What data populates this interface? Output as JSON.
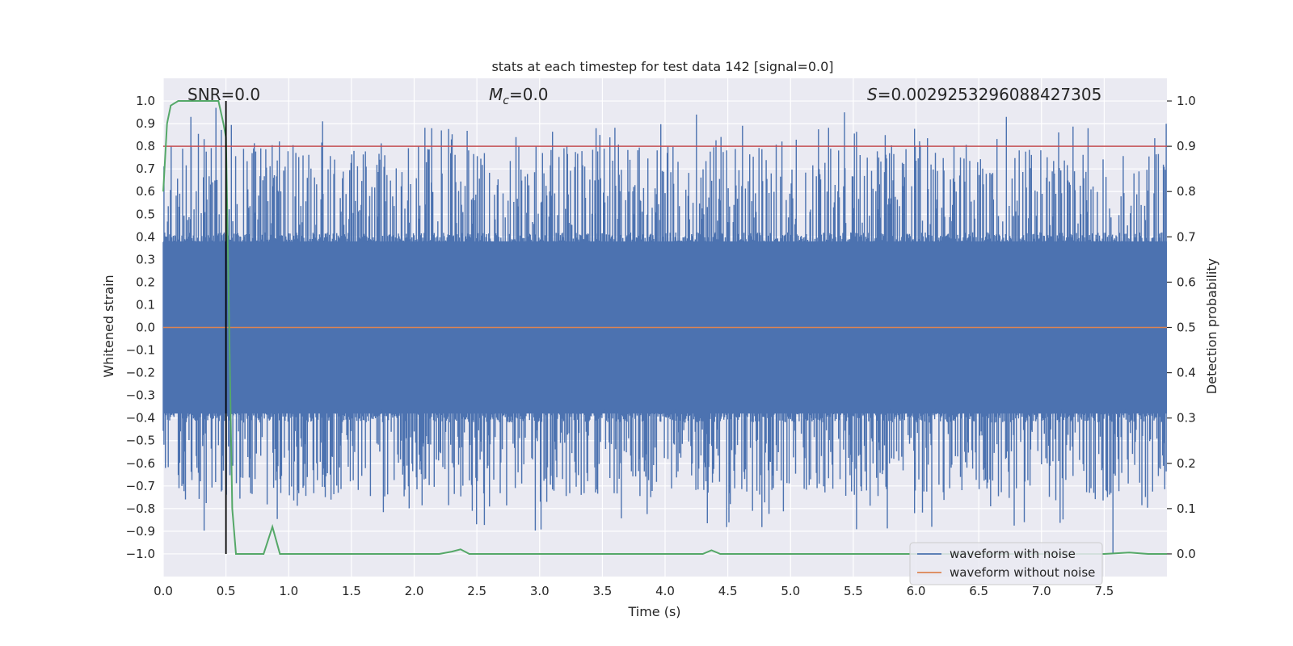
{
  "chart_data": {
    "type": "line",
    "title": "stats at each timestep for test data 142 [signal=0.0]",
    "xlabel": "Time (s)",
    "ylabel": "Whitened strain",
    "ylabel_right": "Detection probability",
    "xlim": [
      0.0,
      8.0
    ],
    "ylim": [
      -1.1,
      1.1
    ],
    "ylim_right": [
      -0.05,
      1.05
    ],
    "x_ticks": [
      "0.0",
      "0.5",
      "1.0",
      "1.5",
      "2.0",
      "2.5",
      "3.0",
      "3.5",
      "4.0",
      "4.5",
      "5.0",
      "5.5",
      "6.0",
      "6.5",
      "7.0",
      "7.5"
    ],
    "x_tick_values": [
      0.0,
      0.5,
      1.0,
      1.5,
      2.0,
      2.5,
      3.0,
      3.5,
      4.0,
      4.5,
      5.0,
      5.5,
      6.0,
      6.5,
      7.0,
      7.5
    ],
    "y_ticks": [
      "1.0",
      "0.9",
      "0.8",
      "0.7",
      "0.6",
      "0.5",
      "0.4",
      "0.3",
      "0.2",
      "0.1",
      "0.0",
      "−0.1",
      "−0.2",
      "−0.3",
      "−0.4",
      "−0.5",
      "−0.6",
      "−0.7",
      "−0.8",
      "−0.9",
      "−1.0"
    ],
    "y_tick_values": [
      1.0,
      0.9,
      0.8,
      0.7,
      0.6,
      0.5,
      0.4,
      0.3,
      0.2,
      0.1,
      0.0,
      -0.1,
      -0.2,
      -0.3,
      -0.4,
      -0.5,
      -0.6,
      -0.7,
      -0.8,
      -0.9,
      -1.0
    ],
    "y_right_ticks": [
      "1.0",
      "0.9",
      "0.8",
      "0.7",
      "0.6",
      "0.5",
      "0.4",
      "0.3",
      "0.2",
      "0.1",
      "0.0"
    ],
    "y_right_tick_values": [
      1.0,
      0.9,
      0.8,
      0.7,
      0.6,
      0.5,
      0.4,
      0.3,
      0.2,
      0.1,
      0.0
    ],
    "annotations": {
      "snr": "SNR=0.0",
      "mc_symbol": "M",
      "mc_sub": "c",
      "mc_value": "=0.0",
      "s_symbol": "S",
      "s_value": "=0.0029253296088427305"
    },
    "series": [
      {
        "name": "waveform with noise",
        "color": "#4c72b0",
        "axis": "left",
        "description": "dense noisy whitened strain, roughly within ±0.4 with spikes to about ±0.95",
        "sample_peaks_x": [
          0.22,
          0.42,
          1.27,
          2.14,
          3.45,
          4.25,
          5.43,
          6.72,
          7.57
        ],
        "sample_peaks_y": [
          0.93,
          0.97,
          0.91,
          0.88,
          0.88,
          0.94,
          0.95,
          0.93,
          -1.0
        ]
      },
      {
        "name": "waveform without noise",
        "color": "#dd8452",
        "axis": "left",
        "x": [
          0.0,
          8.0
        ],
        "values": [
          0.0,
          0.0
        ]
      },
      {
        "name": "detection probability",
        "color": "#55a868",
        "axis": "right",
        "x": [
          0.0,
          0.03,
          0.06,
          0.12,
          0.18,
          0.24,
          0.3,
          0.36,
          0.4,
          0.44,
          0.48,
          0.5,
          0.52,
          0.55,
          0.58,
          0.63,
          0.7,
          0.8,
          0.87,
          0.93,
          1.0,
          2.2,
          2.3,
          2.37,
          2.44,
          2.6,
          4.3,
          4.37,
          4.44,
          4.6,
          7.5,
          7.7,
          7.85,
          8.0
        ],
        "values": [
          0.8,
          0.95,
          0.99,
          1.0,
          1.0,
          1.0,
          1.0,
          1.0,
          1.0,
          1.0,
          0.95,
          0.92,
          0.6,
          0.1,
          0.0,
          0.0,
          0.0,
          0.0,
          0.06,
          0.0,
          0.0,
          0.0,
          0.005,
          0.01,
          0.0,
          0.0,
          0.0,
          0.008,
          0.0,
          0.0,
          0.0,
          0.003,
          0.0,
          0.0
        ]
      }
    ],
    "threshold_line": {
      "value": 0.9,
      "axis": "right",
      "color": "#c44e52"
    },
    "marker_line": {
      "x": 0.5,
      "y_from": -1.0,
      "y_to": 1.0,
      "color": "#000000"
    },
    "legend": {
      "placement": "bottom-right",
      "entries": [
        {
          "label": "waveform with noise",
          "color": "#4c72b0"
        },
        {
          "label": "waveform without noise",
          "color": "#dd8452"
        }
      ]
    },
    "grid": true
  }
}
